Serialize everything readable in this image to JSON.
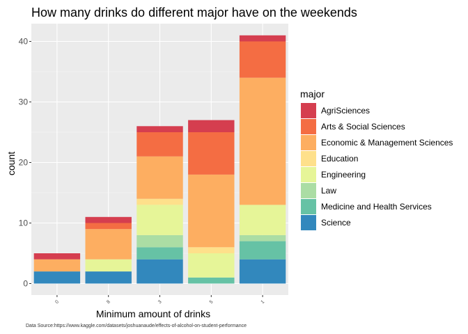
{
  "chart_data": {
    "type": "bar",
    "stacked": true,
    "title": "How many drinks do different major have on the weekends",
    "xlabel": "Minimum amount of drinks",
    "ylabel": "count",
    "categories": [
      "0",
      "8",
      "3",
      "5",
      "1"
    ],
    "ylim": [
      0,
      42
    ],
    "yticks": [
      0,
      10,
      20,
      30,
      40
    ],
    "grid": true,
    "legend": {
      "title": "major",
      "position": "right"
    },
    "caption": "Data Source:https://www.kaggle.com/datasets/joshuanaude/effects-of-alcohol-on-student-performance",
    "series": [
      {
        "name": "AgriSciences",
        "color": "#d53e4f",
        "values": [
          1,
          1,
          1,
          2,
          1
        ]
      },
      {
        "name": "Arts & Social Sciences",
        "color": "#f46d43",
        "values": [
          0,
          1,
          4,
          7,
          6
        ]
      },
      {
        "name": "Economic & Management Sciences",
        "color": "#fdae61",
        "values": [
          2,
          5,
          7,
          12,
          21
        ]
      },
      {
        "name": "Education",
        "color": "#fee08b",
        "values": [
          0,
          0,
          1,
          1,
          0
        ]
      },
      {
        "name": "Engineering",
        "color": "#e6f598",
        "values": [
          0,
          2,
          5,
          4,
          5
        ]
      },
      {
        "name": "Law",
        "color": "#abdda4",
        "values": [
          0,
          0,
          2,
          0,
          1
        ]
      },
      {
        "name": "Medicine and Health Services",
        "color": "#66c2a5",
        "values": [
          0,
          0,
          2,
          1,
          3
        ]
      },
      {
        "name": "Science",
        "color": "#3288bd",
        "values": [
          2,
          2,
          4,
          0,
          4
        ]
      }
    ]
  }
}
